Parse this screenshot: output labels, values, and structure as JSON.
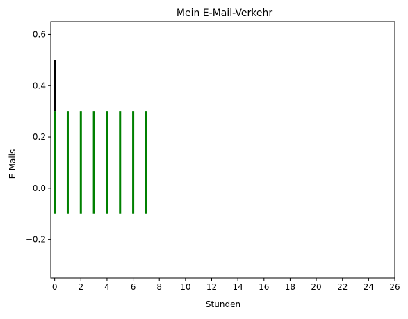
{
  "chart_data": {
    "type": "bar",
    "title": "Mein E-Mail-Verkehr",
    "xlabel": "Stunden",
    "ylabel": "E-Mails",
    "xlim": [
      -0.3,
      26
    ],
    "ylim": [
      -0.35,
      0.65
    ],
    "xticks": [
      0,
      2,
      4,
      6,
      8,
      10,
      12,
      14,
      16,
      18,
      20,
      22,
      24,
      26
    ],
    "xtick_labels": [
      "0",
      "2",
      "4",
      "6",
      "8",
      "10",
      "12",
      "14",
      "16",
      "18",
      "20",
      "22",
      "24",
      "26"
    ],
    "yticks": [
      -0.2,
      0.0,
      0.2,
      0.4,
      0.6
    ],
    "ytick_labels": [
      "−0.2",
      "0.0",
      "0.2",
      "0.4",
      "0.6"
    ],
    "grid": false,
    "series": [
      {
        "color": "#000000",
        "segments": [
          {
            "x": 0,
            "y_start": 0.3,
            "y_end": 0.5
          }
        ]
      },
      {
        "color": "#008000",
        "segments": [
          {
            "x": 0,
            "y_start": -0.1,
            "y_end": 0.3
          },
          {
            "x": 1,
            "y_start": -0.1,
            "y_end": 0.3
          },
          {
            "x": 2,
            "y_start": -0.1,
            "y_end": 0.3
          },
          {
            "x": 3,
            "y_start": -0.1,
            "y_end": 0.3
          },
          {
            "x": 4,
            "y_start": -0.1,
            "y_end": 0.3
          },
          {
            "x": 5,
            "y_start": -0.1,
            "y_end": 0.3
          },
          {
            "x": 6,
            "y_start": -0.1,
            "y_end": 0.3
          },
          {
            "x": 7,
            "y_start": -0.1,
            "y_end": 0.3
          }
        ]
      }
    ]
  }
}
